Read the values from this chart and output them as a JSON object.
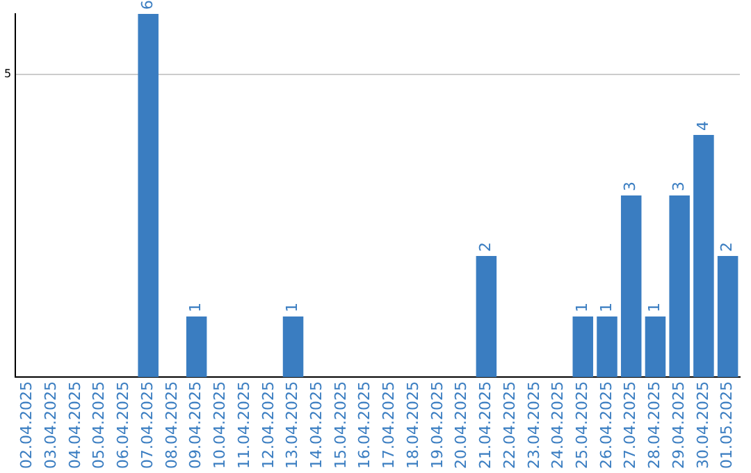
{
  "chart_data": {
    "type": "bar",
    "categories": [
      "02.04.2025",
      "03.04.2025",
      "04.04.2025",
      "05.04.2025",
      "06.04.2025",
      "07.04.2025",
      "08.04.2025",
      "09.04.2025",
      "10.04.2025",
      "11.04.2025",
      "12.04.2025",
      "13.04.2025",
      "14.04.2025",
      "15.04.2025",
      "16.04.2025",
      "17.04.2025",
      "18.04.2025",
      "19.04.2025",
      "20.04.2025",
      "21.04.2025",
      "22.04.2025",
      "23.04.2025",
      "24.04.2025",
      "25.04.2025",
      "26.04.2025",
      "27.04.2025",
      "28.04.2025",
      "29.04.2025",
      "30.04.2025",
      "01.05.2025"
    ],
    "values": [
      0,
      0,
      0,
      0,
      0,
      6,
      0,
      1,
      0,
      0,
      0,
      1,
      0,
      0,
      0,
      0,
      0,
      0,
      0,
      2,
      0,
      0,
      0,
      1,
      1,
      3,
      1,
      3,
      4,
      2
    ],
    "value_labels": [
      null,
      null,
      null,
      null,
      null,
      "6",
      null,
      "1",
      null,
      null,
      null,
      "1",
      null,
      null,
      null,
      null,
      null,
      null,
      null,
      "2",
      null,
      null,
      null,
      "1",
      "1",
      "3",
      "1",
      "3",
      "4",
      "2"
    ],
    "color": "#3a7dc1",
    "ylim": [
      0,
      6
    ],
    "yticks": [
      5
    ],
    "grid": "y",
    "legend": false
  }
}
